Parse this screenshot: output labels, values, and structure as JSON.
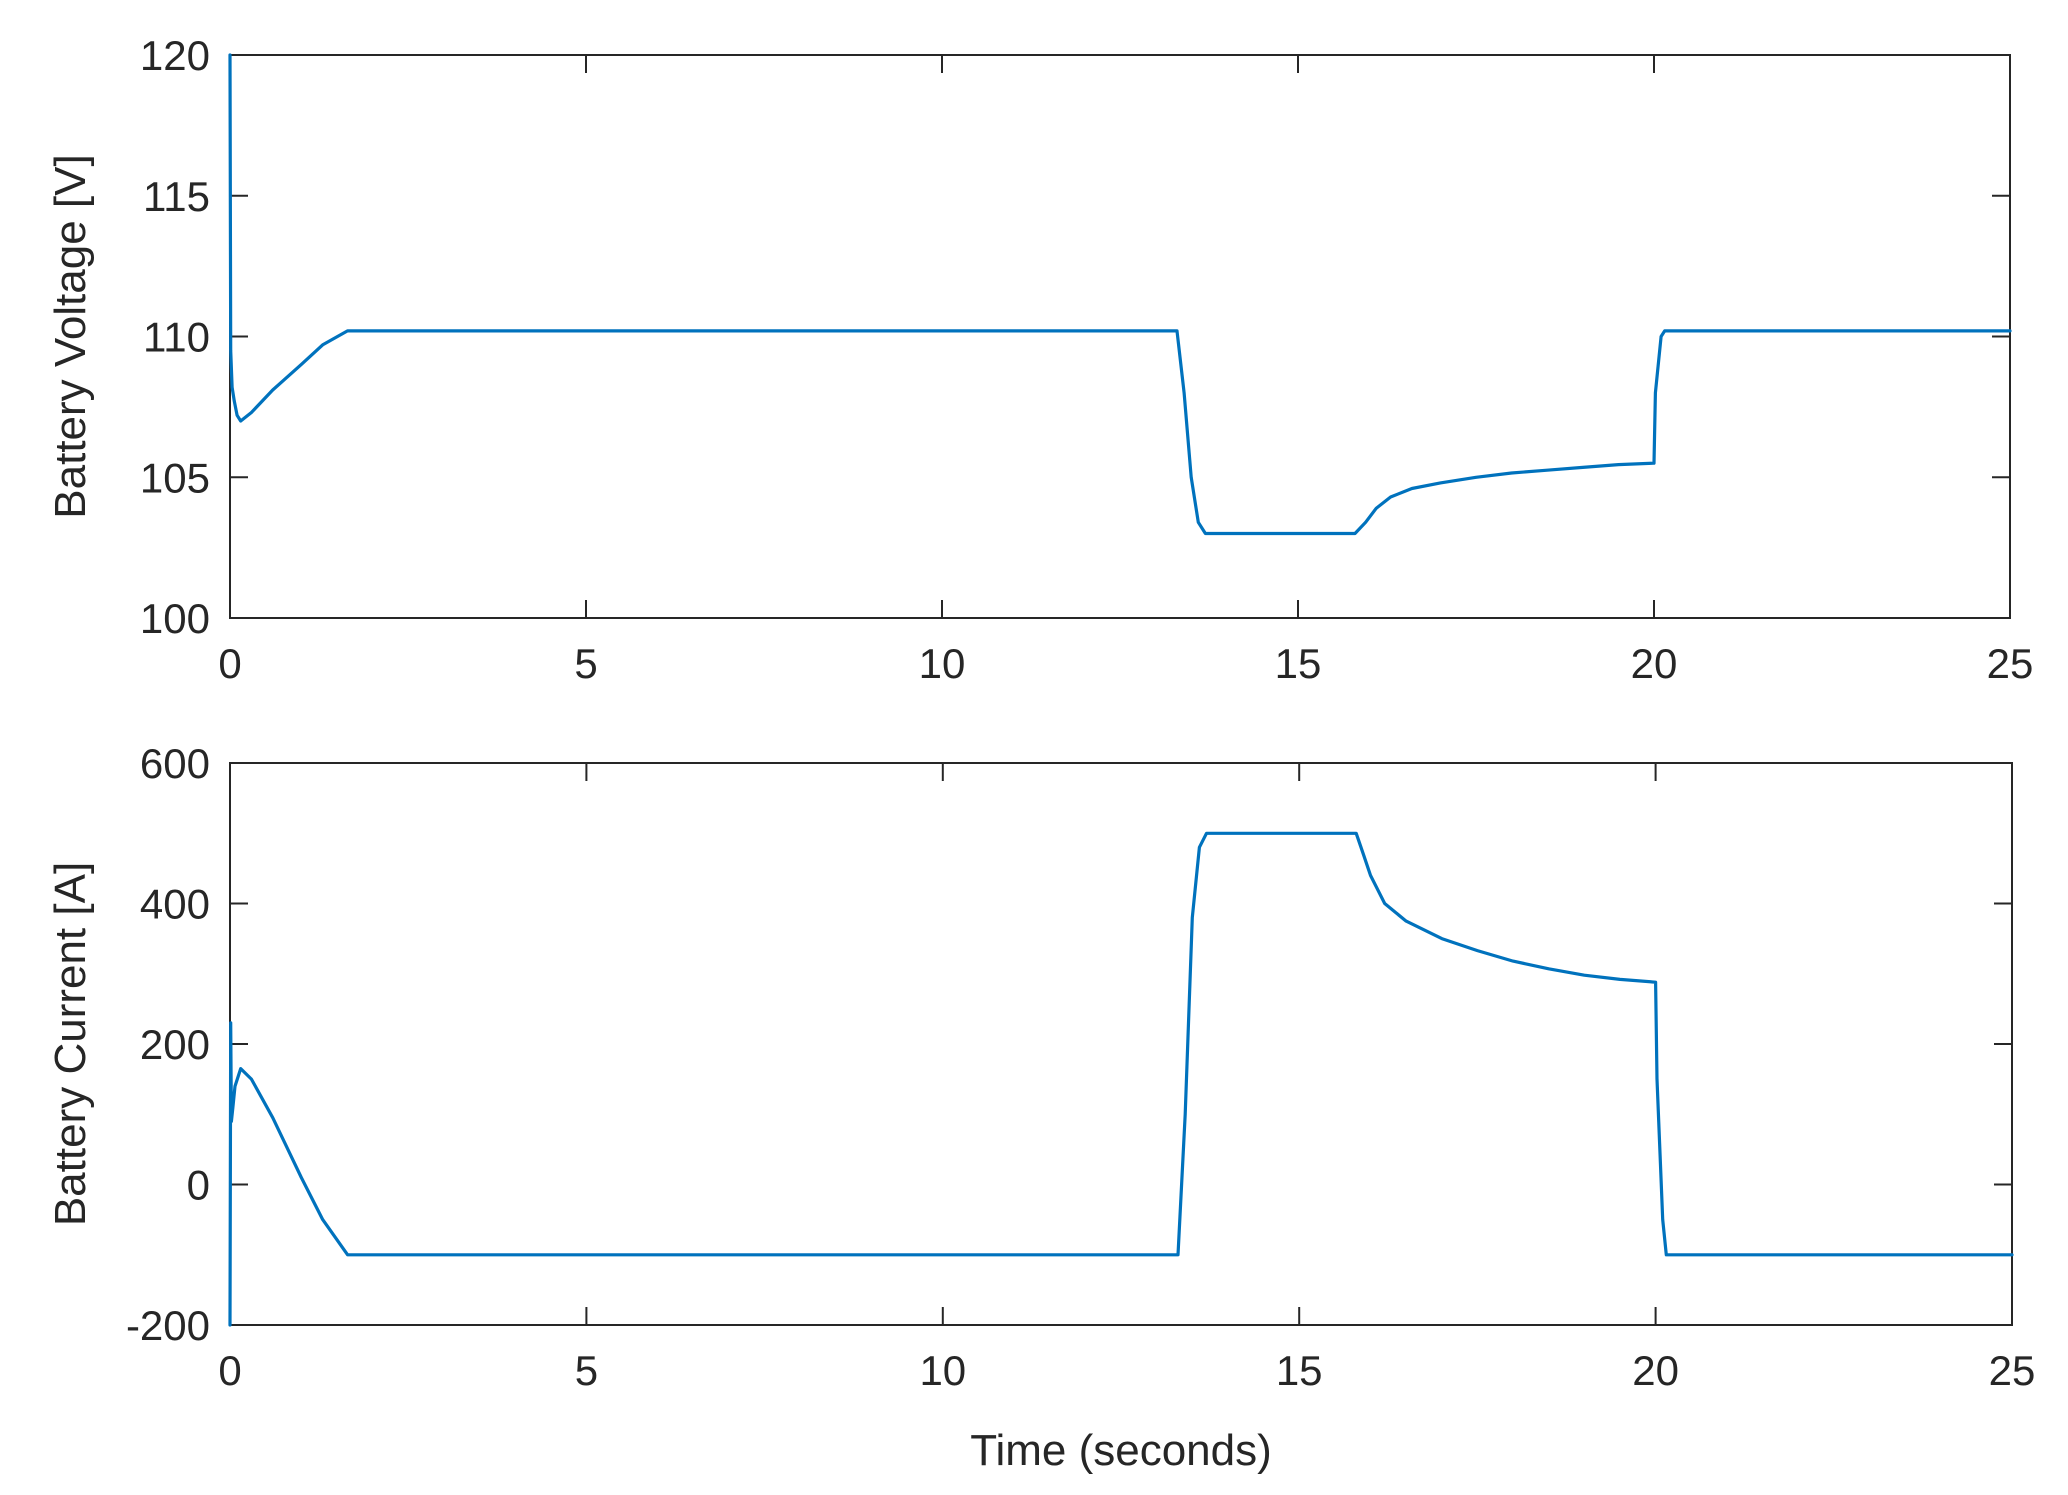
{
  "chart_data": [
    {
      "type": "line",
      "title": "",
      "xlabel": "",
      "ylabel": "Battery Voltage [V]",
      "xlim": [
        0,
        25
      ],
      "ylim": [
        100,
        120
      ],
      "xticks": [
        "0",
        "5",
        "10",
        "15",
        "20",
        "25"
      ],
      "yticks": [
        "100",
        "105",
        "110",
        "115",
        "120"
      ],
      "grid": false,
      "color": "#0072BD",
      "series": [
        {
          "x": [
            0,
            0.01,
            0.03,
            0.06,
            0.1,
            0.15,
            0.3,
            0.6,
            1.0,
            1.3,
            1.65,
            2.0,
            5,
            10,
            13.3,
            13.4,
            13.5,
            13.6,
            13.7,
            15.0,
            15.8,
            15.95,
            16.1,
            16.3,
            16.6,
            17.0,
            17.5,
            18.0,
            18.5,
            19.0,
            19.5,
            20.0,
            20.02,
            20.1,
            20.15,
            22,
            25
          ],
          "y": [
            120,
            109.5,
            108.2,
            107.7,
            107.2,
            107.0,
            107.3,
            108.1,
            109.0,
            109.7,
            110.2,
            110.2,
            110.2,
            110.2,
            110.2,
            108.0,
            105.0,
            103.4,
            103.0,
            103.0,
            103.0,
            103.4,
            103.9,
            104.3,
            104.6,
            104.8,
            105.0,
            105.15,
            105.25,
            105.35,
            105.45,
            105.5,
            108.0,
            110.0,
            110.2,
            110.2,
            110.2
          ]
        }
      ]
    },
    {
      "type": "line",
      "title": "",
      "xlabel": "Time (seconds)",
      "ylabel": "Battery Current [A]",
      "xlim": [
        0,
        25
      ],
      "ylim": [
        -200,
        600
      ],
      "xticks": [
        "0",
        "5",
        "10",
        "15",
        "20",
        "25"
      ],
      "yticks": [
        "-200",
        "0",
        "200",
        "400",
        "600"
      ],
      "grid": false,
      "color": "#0072BD",
      "series": [
        {
          "x": [
            0,
            0.01,
            0.02,
            0.04,
            0.07,
            0.15,
            0.3,
            0.6,
            1.0,
            1.3,
            1.65,
            2.0,
            5,
            10,
            13.3,
            13.4,
            13.5,
            13.6,
            13.7,
            15.0,
            15.8,
            15.9,
            16.0,
            16.2,
            16.5,
            17.0,
            17.5,
            18.0,
            18.5,
            19.0,
            19.5,
            20.0,
            20.02,
            20.1,
            20.15,
            22,
            25
          ],
          "y": [
            -200,
            230,
            90,
            110,
            140,
            165,
            150,
            95,
            10,
            -50,
            -100,
            -100,
            -100,
            -100,
            -100,
            100,
            380,
            480,
            500,
            500,
            500,
            470,
            440,
            400,
            375,
            350,
            333,
            318,
            307,
            298,
            292,
            288,
            150,
            -50,
            -100,
            -100,
            -100
          ]
        }
      ]
    }
  ]
}
